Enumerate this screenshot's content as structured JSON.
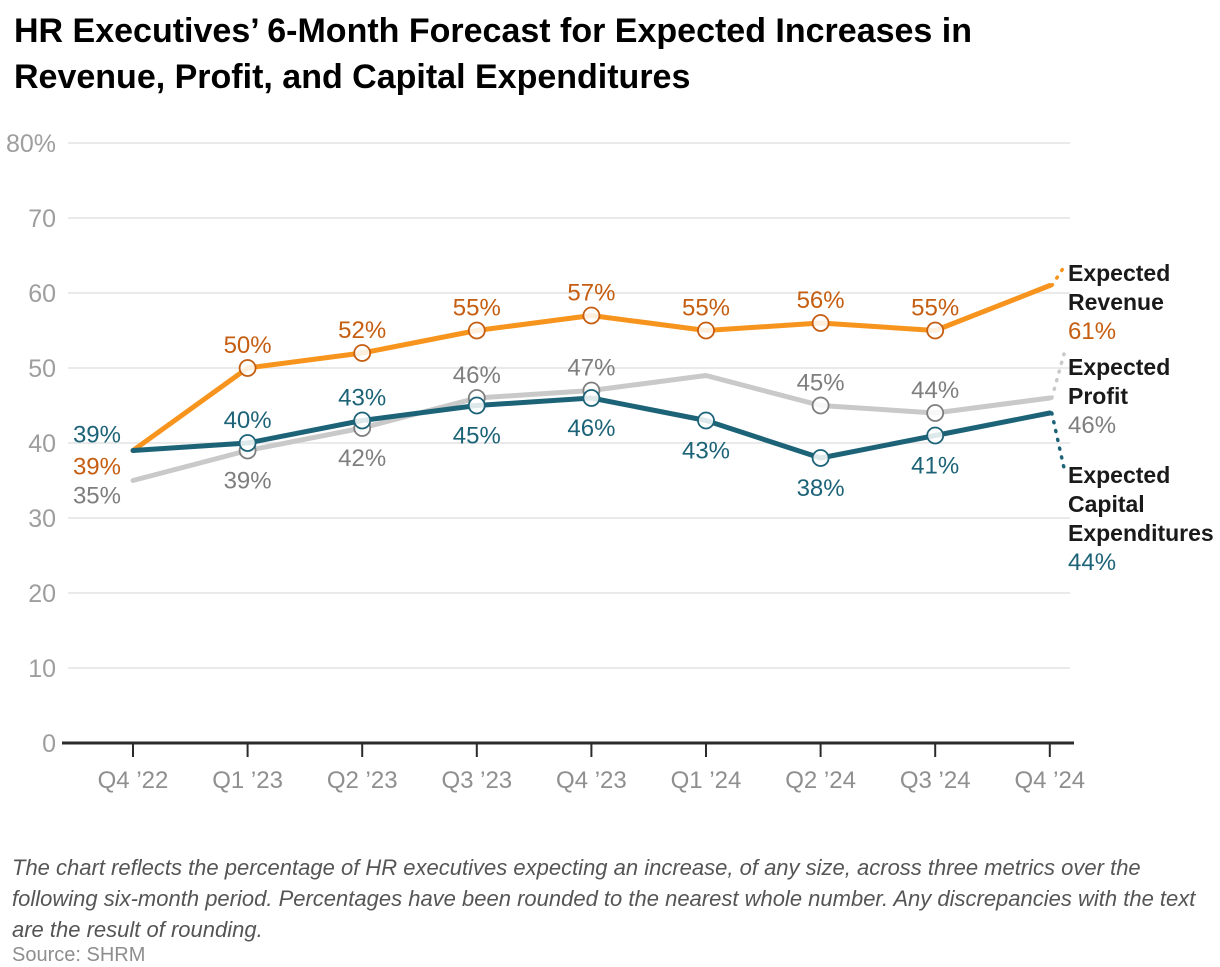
{
  "title": {
    "line1": "HR Executives’ 6-Month Forecast for Expected Increases in",
    "line2": "Revenue, Profit, and Capital Expenditures"
  },
  "footnote": "The chart reflects the percentage of HR executives expecting an increase, of any size, across three metrics over the following six-month period. Percentages have been rounded to the nearest whole number. Any discrepancies with the text are the result of rounding.",
  "source": "Source: SHRM",
  "chart_data": {
    "type": "line",
    "categories": [
      "Q4 ’22",
      "Q1 ’23",
      "Q2 ’23",
      "Q3 ’23",
      "Q4 ’23",
      "Q1 ’24",
      "Q2 ’24",
      "Q3 ’24",
      "Q4 ’24"
    ],
    "y_axis": {
      "min": 0,
      "max": 80,
      "step": 10,
      "grid": true,
      "tick_labels": [
        "0",
        "10",
        "20",
        "30",
        "40",
        "50",
        "60",
        "70",
        "80%"
      ]
    },
    "legend_position": "right-annotations",
    "colors": {
      "grid": "#E4E4E4",
      "axis": "#2B2B2B",
      "y_tick_text": "#9E9E9E",
      "x_tick_text": "#8F8F8F",
      "legend_name_text": "#1A1A1A"
    },
    "series": [
      {
        "name": "Expected Revenue",
        "color": "#F7941E",
        "label_color": "#C55E11",
        "values": [
          39,
          50,
          52,
          55,
          57,
          55,
          56,
          55,
          61
        ],
        "point_labels": [
          "39%",
          "50%",
          "52%",
          "55%",
          "57%",
          "55%",
          "56%",
          "55%",
          null
        ],
        "label_placement": [
          "left",
          "above",
          "above",
          "above",
          "above",
          "above",
          "above",
          "above",
          "end"
        ],
        "annotation": {
          "lines": [
            "Expected",
            "Revenue"
          ],
          "value": "61%"
        }
      },
      {
        "name": "Expected Profit",
        "color": "#C9C9C9",
        "label_color": "#7E7E7E",
        "values": [
          35,
          39,
          42,
          46,
          47,
          49,
          45,
          44,
          46
        ],
        "point_labels": [
          "35%",
          "39%",
          "42%",
          "46%",
          "47%",
          null,
          "45%",
          "44%",
          null
        ],
        "label_placement": [
          "left",
          "below",
          "below",
          "above",
          "above",
          "none",
          "above",
          "above",
          "end"
        ],
        "annotation": {
          "lines": [
            "Expected",
            "Profit"
          ],
          "value": "46%"
        }
      },
      {
        "name": "Expected Capital Expenditures",
        "color": "#1D6378",
        "label_color": "#1D6378",
        "values": [
          39,
          40,
          43,
          45,
          46,
          43,
          38,
          41,
          44
        ],
        "point_labels": [
          "39%",
          "40%",
          "43%",
          "45%",
          "46%",
          "43%",
          "38%",
          "41%",
          null
        ],
        "label_placement": [
          "left",
          "above",
          "above",
          "below",
          "below",
          "below",
          "below",
          "below",
          "end"
        ],
        "annotation": {
          "lines": [
            "Expected",
            "Capital",
            "Expenditures"
          ],
          "value": "44%"
        }
      }
    ]
  }
}
